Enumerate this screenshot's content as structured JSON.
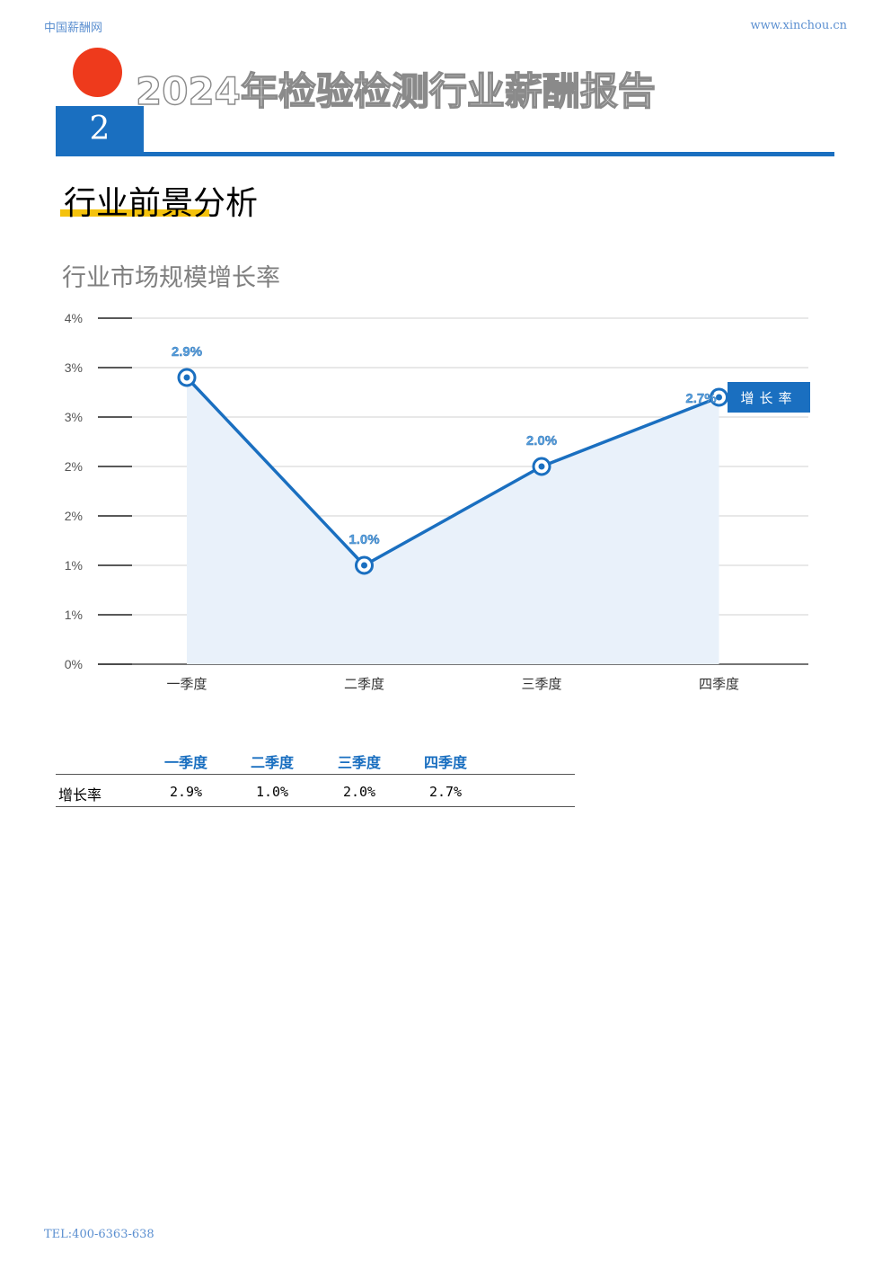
{
  "header": {
    "site_name": "中国薪酬网",
    "site_url": "www.xinchou.cn",
    "report_title": "2024年检验检测行业薪酬报告",
    "chapter_number": "2"
  },
  "section": {
    "title": "行业前景分析"
  },
  "chart_title": "行业市场规模增长率",
  "chart_data": {
    "type": "line",
    "categories": [
      "一季度",
      "二季度",
      "三季度",
      "四季度"
    ],
    "series": [
      {
        "name": "增长率",
        "values": [
          2.9,
          1.0,
          2.0,
          2.7
        ],
        "labels": [
          "2.9%",
          "1.0%",
          "2.0%",
          "2.7%"
        ]
      }
    ],
    "y_tick_labels": [
      "0%",
      "1%",
      "1%",
      "2%",
      "2%",
      "3%",
      "3%",
      "4%"
    ],
    "ylim": [
      0,
      3.5
    ],
    "grid": true,
    "legend_position": "right-end",
    "area_fill": true,
    "line_color": "#1a6fc0",
    "fill_color": "#e9f1fa",
    "accent_color": "#1a6fc0"
  },
  "table": {
    "headers": [
      "一季度",
      "二季度",
      "三季度",
      "四季度"
    ],
    "row_label": "增长率",
    "values": [
      "2.9%",
      "1.0%",
      "2.0%",
      "2.7%"
    ]
  },
  "footer": {
    "tel": "TEL:400-6363-638"
  }
}
